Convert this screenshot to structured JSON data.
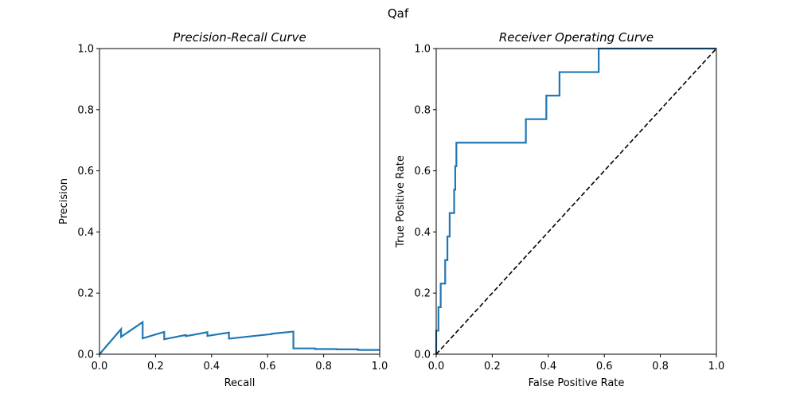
{
  "figure": {
    "suptitle": "Qaf"
  },
  "chart_data": [
    {
      "type": "line",
      "title": "Precision-Recall Curve",
      "xlabel": "Recall",
      "ylabel": "Precision",
      "xlim": [
        0,
        1
      ],
      "ylim": [
        0,
        1
      ],
      "xticks": [
        "0.0",
        "0.2",
        "0.4",
        "0.6",
        "0.8",
        "1.0"
      ],
      "yticks": [
        "0.0",
        "0.2",
        "0.4",
        "0.6",
        "0.8",
        "1.0"
      ],
      "grid": false,
      "series": [
        {
          "color": "#1f77b4",
          "x": [
            0.0,
            0.077,
            0.077,
            0.154,
            0.154,
            0.231,
            0.231,
            0.308,
            0.308,
            0.385,
            0.385,
            0.462,
            0.462,
            0.615,
            0.615,
            0.692,
            0.692,
            0.769,
            0.769,
            0.846,
            0.846,
            0.923,
            0.923,
            1.0
          ],
          "y": [
            0.0,
            0.082,
            0.057,
            0.105,
            0.052,
            0.073,
            0.049,
            0.063,
            0.059,
            0.072,
            0.06,
            0.071,
            0.051,
            0.066,
            0.067,
            0.074,
            0.019,
            0.019,
            0.017,
            0.017,
            0.016,
            0.016,
            0.014,
            0.014
          ]
        }
      ]
    },
    {
      "type": "line",
      "title": "Receiver Operating Curve",
      "xlabel": "False Positive Rate",
      "ylabel": "True Positive Rate",
      "xlim": [
        0,
        1
      ],
      "ylim": [
        0,
        1
      ],
      "xticks": [
        "0.0",
        "0.2",
        "0.4",
        "0.6",
        "0.8",
        "1.0"
      ],
      "yticks": [
        "0.0",
        "0.2",
        "0.4",
        "0.6",
        "0.8",
        "1.0"
      ],
      "grid": false,
      "series": [
        {
          "color": "#1f77b4",
          "style": "step",
          "x": [
            0.0,
            0.0,
            0.008,
            0.008,
            0.016,
            0.016,
            0.032,
            0.032,
            0.04,
            0.04,
            0.048,
            0.048,
            0.064,
            0.064,
            0.068,
            0.068,
            0.072,
            0.072,
            0.32,
            0.32,
            0.393,
            0.393,
            0.44,
            0.44,
            0.58,
            0.58,
            1.0
          ],
          "y": [
            0.0,
            0.077,
            0.077,
            0.154,
            0.154,
            0.231,
            0.231,
            0.308,
            0.308,
            0.385,
            0.385,
            0.462,
            0.462,
            0.538,
            0.538,
            0.615,
            0.615,
            0.692,
            0.692,
            0.769,
            0.769,
            0.846,
            0.846,
            0.923,
            0.923,
            1.0,
            1.0
          ]
        },
        {
          "color": "#000000",
          "style": "dashed",
          "x": [
            0,
            1
          ],
          "y": [
            0,
            1
          ]
        }
      ]
    }
  ]
}
